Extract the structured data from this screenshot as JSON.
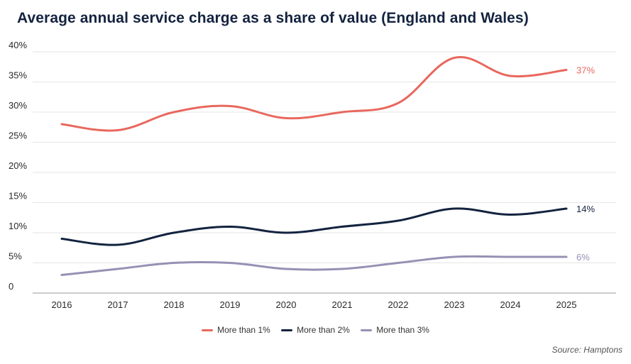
{
  "chart_data": {
    "type": "line",
    "title": "Average annual service charge as a share of value (England and Wales)",
    "xlabel": "",
    "ylabel": "",
    "categories": [
      "2016",
      "2017",
      "2018",
      "2019",
      "2020",
      "2021",
      "2022",
      "2023",
      "2024",
      "2025"
    ],
    "ylim": [
      0,
      40
    ],
    "yticks": [
      0,
      5,
      10,
      15,
      20,
      25,
      30,
      35,
      40
    ],
    "ytick_labels": [
      "0",
      "5%",
      "10%",
      "15%",
      "20%",
      "25%",
      "30%",
      "35%",
      "40%"
    ],
    "grid": true,
    "legend_position": "bottom-center",
    "series": [
      {
        "name": "More than 1%",
        "color": "#e8685e",
        "values": [
          28,
          27,
          30,
          31,
          29,
          30,
          31.5,
          39,
          36,
          37
        ],
        "end_label": "37%"
      },
      {
        "name": "More than 2%",
        "color": "#13233f",
        "values": [
          9,
          8,
          10,
          11,
          10,
          11,
          12,
          14,
          13,
          14
        ],
        "end_label": "14%"
      },
      {
        "name": "More than 3%",
        "color": "#9790b4",
        "values": [
          3,
          4,
          5,
          5,
          4,
          4,
          5,
          6,
          6,
          6
        ],
        "end_label": "6%"
      }
    ],
    "source": "Source: Hamptons"
  }
}
